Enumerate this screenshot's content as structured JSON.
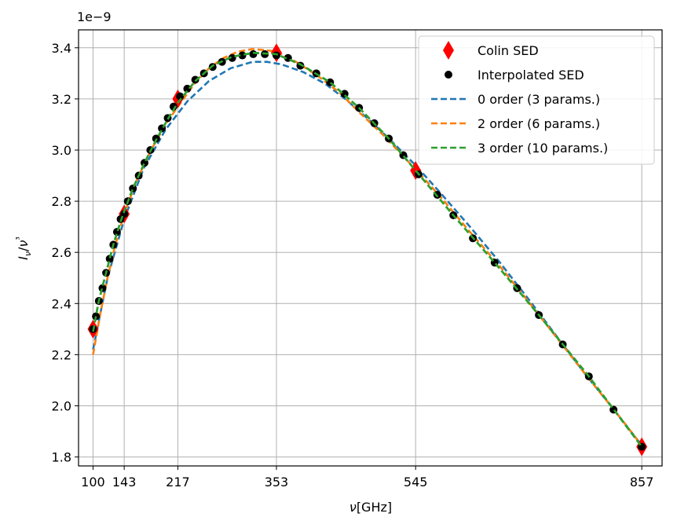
{
  "chart_data": {
    "type": "line",
    "xlabel": "ν[GHz]",
    "ylabel": "Iν/ν³",
    "y_offset_text": "1e−9",
    "xlim": [
      80,
      885
    ],
    "ylim": [
      1.765,
      3.47
    ],
    "x_ticks": [
      100,
      143,
      217,
      353,
      545,
      857
    ],
    "x_tick_labels": [
      "100",
      "143",
      "217",
      "353",
      "545",
      "857"
    ],
    "y_ticks": [
      1.8,
      2.0,
      2.2,
      2.4,
      2.6,
      2.8,
      3.0,
      3.2,
      3.4
    ],
    "y_tick_labels": [
      "1.8",
      "2.0",
      "2.2",
      "2.4",
      "2.6",
      "2.8",
      "3.0",
      "3.2",
      "3.4"
    ],
    "grid": true,
    "legend_position": "top-right",
    "series": [
      {
        "name": "Colin SED",
        "kind": "markers",
        "marker": "thin-diamond",
        "color": "#ff0000",
        "points": [
          [
            100,
            2.3
          ],
          [
            143,
            2.75
          ],
          [
            217,
            3.2
          ],
          [
            353,
            3.38
          ],
          [
            545,
            2.92
          ],
          [
            857,
            1.84
          ]
        ]
      },
      {
        "name": "Interpolated SED",
        "kind": "markers",
        "marker": "circle",
        "color": "#000000",
        "points": [
          [
            100,
            2.3
          ],
          [
            104,
            2.35
          ],
          [
            108,
            2.41
          ],
          [
            113,
            2.46
          ],
          [
            118,
            2.52
          ],
          [
            123,
            2.575
          ],
          [
            128,
            2.63
          ],
          [
            133,
            2.68
          ],
          [
            138,
            2.73
          ],
          [
            143,
            2.75
          ],
          [
            148,
            2.8
          ],
          [
            155,
            2.85
          ],
          [
            163,
            2.9
          ],
          [
            171,
            2.95
          ],
          [
            179,
            3.0
          ],
          [
            187,
            3.045
          ],
          [
            195,
            3.085
          ],
          [
            203,
            3.125
          ],
          [
            211,
            3.17
          ],
          [
            220,
            3.21
          ],
          [
            230,
            3.24
          ],
          [
            241,
            3.275
          ],
          [
            253,
            3.3
          ],
          [
            265,
            3.325
          ],
          [
            278,
            3.345
          ],
          [
            292,
            3.36
          ],
          [
            306,
            3.37
          ],
          [
            321,
            3.375
          ],
          [
            337,
            3.375
          ],
          [
            353,
            3.37
          ],
          [
            369,
            3.36
          ],
          [
            386,
            3.33
          ],
          [
            408,
            3.3
          ],
          [
            427,
            3.265
          ],
          [
            447,
            3.22
          ],
          [
            467,
            3.165
          ],
          [
            488,
            3.105
          ],
          [
            508,
            3.045
          ],
          [
            528,
            2.98
          ],
          [
            549,
            2.905
          ],
          [
            575,
            2.825
          ],
          [
            597,
            2.745
          ],
          [
            624,
            2.655
          ],
          [
            654,
            2.56
          ],
          [
            685,
            2.46
          ],
          [
            715,
            2.355
          ],
          [
            748,
            2.24
          ],
          [
            784,
            2.115
          ],
          [
            818,
            1.985
          ],
          [
            857,
            1.84
          ]
        ]
      },
      {
        "name": "0 order (3 params.)",
        "kind": "dashed-line",
        "color": "#1f77b4",
        "points": [
          [
            100,
            2.22
          ],
          [
            120,
            2.5
          ],
          [
            143,
            2.73
          ],
          [
            170,
            2.93
          ],
          [
            200,
            3.08
          ],
          [
            230,
            3.19
          ],
          [
            260,
            3.27
          ],
          [
            290,
            3.32
          ],
          [
            320,
            3.345
          ],
          [
            340,
            3.345
          ],
          [
            360,
            3.335
          ],
          [
            390,
            3.305
          ],
          [
            420,
            3.26
          ],
          [
            450,
            3.195
          ],
          [
            480,
            3.12
          ],
          [
            510,
            3.04
          ],
          [
            545,
            2.94
          ],
          [
            580,
            2.83
          ],
          [
            620,
            2.7
          ],
          [
            660,
            2.565
          ],
          [
            700,
            2.42
          ],
          [
            740,
            2.27
          ],
          [
            780,
            2.12
          ],
          [
            820,
            1.98
          ],
          [
            857,
            1.845
          ]
        ]
      },
      {
        "name": "2 order (6 params.)",
        "kind": "dashed-line",
        "color": "#ff7f0e",
        "points": [
          [
            100,
            2.2
          ],
          [
            110,
            2.36
          ],
          [
            120,
            2.5
          ],
          [
            130,
            2.62
          ],
          [
            143,
            2.75
          ],
          [
            160,
            2.88
          ],
          [
            180,
            3.0
          ],
          [
            200,
            3.1
          ],
          [
            217,
            3.17
          ],
          [
            240,
            3.26
          ],
          [
            260,
            3.32
          ],
          [
            280,
            3.36
          ],
          [
            300,
            3.385
          ],
          [
            320,
            3.395
          ],
          [
            340,
            3.39
          ],
          [
            353,
            3.385
          ],
          [
            380,
            3.345
          ],
          [
            410,
            3.29
          ],
          [
            440,
            3.225
          ],
          [
            470,
            3.14
          ],
          [
            500,
            3.06
          ],
          [
            530,
            2.97
          ],
          [
            545,
            2.925
          ],
          [
            580,
            2.815
          ],
          [
            620,
            2.68
          ],
          [
            660,
            2.55
          ],
          [
            700,
            2.41
          ],
          [
            740,
            2.265
          ],
          [
            780,
            2.12
          ],
          [
            820,
            1.98
          ],
          [
            857,
            1.845
          ]
        ]
      },
      {
        "name": "3 order (10 params.)",
        "kind": "dashed-line",
        "color": "#2ca02c",
        "points": [
          [
            100,
            2.29
          ],
          [
            108,
            2.41
          ],
          [
            118,
            2.52
          ],
          [
            128,
            2.63
          ],
          [
            138,
            2.72
          ],
          [
            143,
            2.76
          ],
          [
            155,
            2.85
          ],
          [
            171,
            2.95
          ],
          [
            187,
            3.04
          ],
          [
            203,
            3.12
          ],
          [
            217,
            3.185
          ],
          [
            241,
            3.27
          ],
          [
            265,
            3.33
          ],
          [
            292,
            3.365
          ],
          [
            321,
            3.38
          ],
          [
            353,
            3.375
          ],
          [
            386,
            3.335
          ],
          [
            427,
            3.265
          ],
          [
            467,
            3.165
          ],
          [
            508,
            3.045
          ],
          [
            545,
            2.92
          ],
          [
            597,
            2.745
          ],
          [
            654,
            2.56
          ],
          [
            715,
            2.355
          ],
          [
            784,
            2.115
          ],
          [
            857,
            1.84
          ]
        ]
      }
    ]
  }
}
